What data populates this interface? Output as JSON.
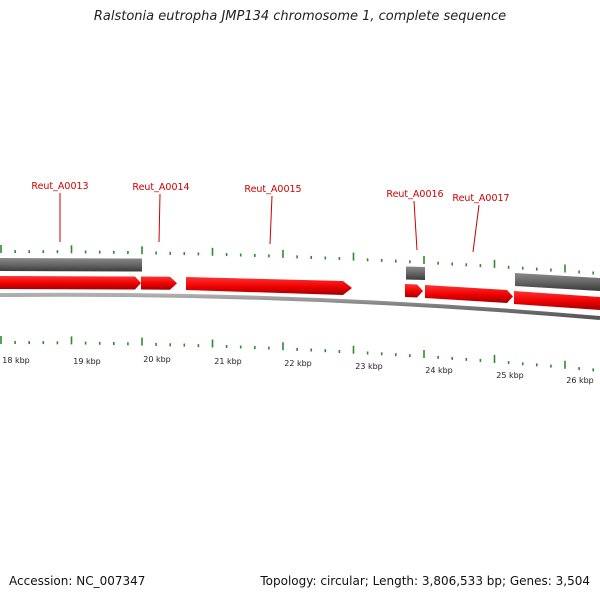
{
  "title": "Ralstonia eutropha JMP134 chromosome 1, complete sequence",
  "colors": {
    "gene_forward": "#ee0000",
    "gene_forward_dark": "#aa0000",
    "gene_other": "#666666",
    "gene_other_dark": "#333333",
    "backbone": "#888888",
    "tick": "#2e8b2e",
    "label": "#cc0000"
  },
  "gene_labels": [
    {
      "id": "g13",
      "text": "Reut_A0013"
    },
    {
      "id": "g14",
      "text": "Reut_A0014"
    },
    {
      "id": "g15",
      "text": "Reut_A0015"
    },
    {
      "id": "g16",
      "text": "Reut_A0016"
    },
    {
      "id": "g17",
      "text": "Reut_A0017"
    }
  ],
  "scale_labels": [
    "18 kbp",
    "19 kbp",
    "20 kbp",
    "21 kbp",
    "22 kbp",
    "23 kbp",
    "24 kbp",
    "25 kbp",
    "26 kbp"
  ],
  "footer": {
    "accession": "Accession: NC_007347",
    "stats": "Topology: circular; Length: 3,806,533 bp; Genes: 3,504"
  }
}
